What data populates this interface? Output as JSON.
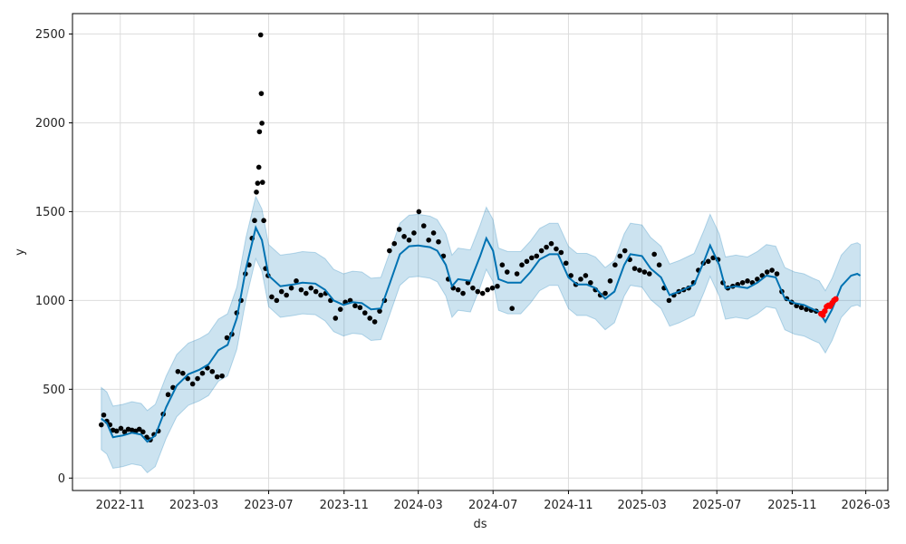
{
  "chart_data": {
    "type": "line",
    "title": "",
    "xlabel": "ds",
    "ylabel": "y",
    "x_axis": {
      "type": "date",
      "range": [
        "2022-08-15",
        "2026-04-06"
      ],
      "ticks": [
        {
          "date": "2022-11-01",
          "label": "2022-11"
        },
        {
          "date": "2023-03-01",
          "label": "2023-03"
        },
        {
          "date": "2023-07-01",
          "label": "2023-07"
        },
        {
          "date": "2023-11-01",
          "label": "2023-11"
        },
        {
          "date": "2024-03-01",
          "label": "2024-03"
        },
        {
          "date": "2024-07-01",
          "label": "2024-07"
        },
        {
          "date": "2024-11-01",
          "label": "2024-11"
        },
        {
          "date": "2025-03-01",
          "label": "2025-03"
        },
        {
          "date": "2025-07-01",
          "label": "2025-07"
        },
        {
          "date": "2025-11-01",
          "label": "2025-11"
        },
        {
          "date": "2026-03-01",
          "label": "2026-03"
        }
      ]
    },
    "y_axis": {
      "range": [
        -70,
        2615
      ],
      "ticks": [
        0,
        500,
        1000,
        1500,
        2000,
        2500
      ]
    },
    "grid": true,
    "legend": "none",
    "colors": {
      "forecast_line": "#0072b2",
      "uncertainty_band": "#0072b2",
      "observed_points": "#000000",
      "highlighted_points": "#ff0000",
      "grid": "#dddddd"
    },
    "band_width": 175,
    "series": [
      {
        "role": "forecast",
        "points": [
          [
            "2022-10-01",
            335
          ],
          [
            "2022-10-10",
            310
          ],
          [
            "2022-10-20",
            230
          ],
          [
            "2022-11-05",
            240
          ],
          [
            "2022-11-20",
            255
          ],
          [
            "2022-12-05",
            245
          ],
          [
            "2022-12-15",
            205
          ],
          [
            "2022-12-28",
            240
          ],
          [
            "2023-01-15",
            400
          ],
          [
            "2023-02-01",
            520
          ],
          [
            "2023-02-20",
            585
          ],
          [
            "2023-03-10",
            610
          ],
          [
            "2023-03-25",
            640
          ],
          [
            "2023-04-10",
            720
          ],
          [
            "2023-04-25",
            750
          ],
          [
            "2023-05-10",
            900
          ],
          [
            "2023-05-25",
            1180
          ],
          [
            "2023-06-10",
            1410
          ],
          [
            "2023-06-20",
            1340
          ],
          [
            "2023-07-01",
            1140
          ],
          [
            "2023-07-20",
            1080
          ],
          [
            "2023-08-10",
            1090
          ],
          [
            "2023-08-25",
            1100
          ],
          [
            "2023-09-15",
            1095
          ],
          [
            "2023-10-01",
            1060
          ],
          [
            "2023-10-15",
            1000
          ],
          [
            "2023-10-31",
            975
          ],
          [
            "2023-11-15",
            990
          ],
          [
            "2023-11-30",
            985
          ],
          [
            "2023-12-15",
            950
          ],
          [
            "2023-12-31",
            955
          ],
          [
            "2024-01-15",
            1100
          ],
          [
            "2024-01-31",
            1260
          ],
          [
            "2024-02-15",
            1305
          ],
          [
            "2024-03-01",
            1310
          ],
          [
            "2024-03-20",
            1300
          ],
          [
            "2024-04-01",
            1280
          ],
          [
            "2024-04-15",
            1200
          ],
          [
            "2024-04-25",
            1080
          ],
          [
            "2024-05-05",
            1120
          ],
          [
            "2024-05-25",
            1110
          ],
          [
            "2024-06-10",
            1250
          ],
          [
            "2024-06-20",
            1350
          ],
          [
            "2024-07-01",
            1280
          ],
          [
            "2024-07-10",
            1120
          ],
          [
            "2024-07-25",
            1100
          ],
          [
            "2024-08-15",
            1100
          ],
          [
            "2024-08-31",
            1160
          ],
          [
            "2024-09-15",
            1230
          ],
          [
            "2024-10-01",
            1260
          ],
          [
            "2024-10-15",
            1260
          ],
          [
            "2024-11-01",
            1130
          ],
          [
            "2024-11-15",
            1090
          ],
          [
            "2024-12-01",
            1090
          ],
          [
            "2024-12-15",
            1070
          ],
          [
            "2024-12-31",
            1010
          ],
          [
            "2025-01-15",
            1050
          ],
          [
            "2025-01-31",
            1200
          ],
          [
            "2025-02-10",
            1260
          ],
          [
            "2025-03-01",
            1250
          ],
          [
            "2025-03-15",
            1180
          ],
          [
            "2025-04-01",
            1130
          ],
          [
            "2025-04-15",
            1030
          ],
          [
            "2025-05-01",
            1050
          ],
          [
            "2025-05-25",
            1090
          ],
          [
            "2025-06-10",
            1220
          ],
          [
            "2025-06-20",
            1310
          ],
          [
            "2025-07-05",
            1200
          ],
          [
            "2025-07-15",
            1070
          ],
          [
            "2025-08-01",
            1080
          ],
          [
            "2025-08-20",
            1070
          ],
          [
            "2025-09-05",
            1100
          ],
          [
            "2025-09-20",
            1140
          ],
          [
            "2025-10-05",
            1130
          ],
          [
            "2025-10-20",
            1010
          ],
          [
            "2025-11-05",
            985
          ],
          [
            "2025-11-20",
            975
          ],
          [
            "2025-12-05",
            950
          ],
          [
            "2025-12-15",
            935
          ],
          [
            "2025-12-25",
            880
          ],
          [
            "2026-01-05",
            950
          ],
          [
            "2026-01-20",
            1080
          ],
          [
            "2026-02-05",
            1140
          ],
          [
            "2026-02-15",
            1150
          ],
          [
            "2026-02-20",
            1140
          ]
        ]
      },
      {
        "role": "observed",
        "points": [
          [
            "2022-10-01",
            300
          ],
          [
            "2022-10-05",
            355
          ],
          [
            "2022-10-10",
            320
          ],
          [
            "2022-10-15",
            300
          ],
          [
            "2022-10-20",
            270
          ],
          [
            "2022-10-26",
            265
          ],
          [
            "2022-11-02",
            280
          ],
          [
            "2022-11-08",
            260
          ],
          [
            "2022-11-14",
            275
          ],
          [
            "2022-11-20",
            270
          ],
          [
            "2022-11-26",
            265
          ],
          [
            "2022-12-02",
            275
          ],
          [
            "2022-12-08",
            260
          ],
          [
            "2022-12-14",
            230
          ],
          [
            "2022-12-20",
            215
          ],
          [
            "2022-12-26",
            245
          ],
          [
            "2023-01-02",
            265
          ],
          [
            "2023-01-10",
            360
          ],
          [
            "2023-01-18",
            470
          ],
          [
            "2023-01-26",
            510
          ],
          [
            "2023-02-03",
            600
          ],
          [
            "2023-02-11",
            590
          ],
          [
            "2023-02-19",
            560
          ],
          [
            "2023-02-27",
            530
          ],
          [
            "2023-03-07",
            560
          ],
          [
            "2023-03-15",
            590
          ],
          [
            "2023-03-23",
            620
          ],
          [
            "2023-03-31",
            600
          ],
          [
            "2023-04-08",
            570
          ],
          [
            "2023-04-16",
            575
          ],
          [
            "2023-04-24",
            790
          ],
          [
            "2023-05-02",
            810
          ],
          [
            "2023-05-10",
            930
          ],
          [
            "2023-05-17",
            1000
          ],
          [
            "2023-05-24",
            1150
          ],
          [
            "2023-05-30",
            1200
          ],
          [
            "2023-06-04",
            1350
          ],
          [
            "2023-06-08",
            1450
          ],
          [
            "2023-06-11",
            1610
          ],
          [
            "2023-06-13",
            1660
          ],
          [
            "2023-06-15",
            1750
          ],
          [
            "2023-06-16",
            1950
          ],
          [
            "2023-06-18",
            2495
          ],
          [
            "2023-06-19",
            2165
          ],
          [
            "2023-06-20",
            1998
          ],
          [
            "2023-06-21",
            1665
          ],
          [
            "2023-06-23",
            1450
          ],
          [
            "2023-06-26",
            1180
          ],
          [
            "2023-06-30",
            1140
          ],
          [
            "2023-07-06",
            1020
          ],
          [
            "2023-07-14",
            1000
          ],
          [
            "2023-07-22",
            1050
          ],
          [
            "2023-07-30",
            1030
          ],
          [
            "2023-08-07",
            1070
          ],
          [
            "2023-08-15",
            1110
          ],
          [
            "2023-08-23",
            1060
          ],
          [
            "2023-08-31",
            1040
          ],
          [
            "2023-09-08",
            1070
          ],
          [
            "2023-09-16",
            1050
          ],
          [
            "2023-09-24",
            1030
          ],
          [
            "2023-10-02",
            1040
          ],
          [
            "2023-10-10",
            1000
          ],
          [
            "2023-10-18",
            900
          ],
          [
            "2023-10-26",
            950
          ],
          [
            "2023-11-03",
            990
          ],
          [
            "2023-11-11",
            1000
          ],
          [
            "2023-11-19",
            970
          ],
          [
            "2023-11-27",
            960
          ],
          [
            "2023-12-05",
            930
          ],
          [
            "2023-12-13",
            900
          ],
          [
            "2023-12-21",
            880
          ],
          [
            "2023-12-29",
            940
          ],
          [
            "2024-01-06",
            1000
          ],
          [
            "2024-01-14",
            1280
          ],
          [
            "2024-01-22",
            1320
          ],
          [
            "2024-01-30",
            1400
          ],
          [
            "2024-02-07",
            1360
          ],
          [
            "2024-02-15",
            1340
          ],
          [
            "2024-02-23",
            1380
          ],
          [
            "2024-03-02",
            1500
          ],
          [
            "2024-03-10",
            1420
          ],
          [
            "2024-03-18",
            1340
          ],
          [
            "2024-03-26",
            1380
          ],
          [
            "2024-04-03",
            1330
          ],
          [
            "2024-04-11",
            1250
          ],
          [
            "2024-04-19",
            1120
          ],
          [
            "2024-04-27",
            1070
          ],
          [
            "2024-05-05",
            1060
          ],
          [
            "2024-05-13",
            1040
          ],
          [
            "2024-05-21",
            1100
          ],
          [
            "2024-05-29",
            1070
          ],
          [
            "2024-06-06",
            1050
          ],
          [
            "2024-06-14",
            1040
          ],
          [
            "2024-06-22",
            1060
          ],
          [
            "2024-06-30",
            1070
          ],
          [
            "2024-07-08",
            1080
          ],
          [
            "2024-07-16",
            1200
          ],
          [
            "2024-07-24",
            1160
          ],
          [
            "2024-08-01",
            955
          ],
          [
            "2024-08-09",
            1150
          ],
          [
            "2024-08-17",
            1200
          ],
          [
            "2024-08-25",
            1220
          ],
          [
            "2024-09-02",
            1240
          ],
          [
            "2024-09-10",
            1250
          ],
          [
            "2024-09-18",
            1280
          ],
          [
            "2024-09-26",
            1300
          ],
          [
            "2024-10-04",
            1320
          ],
          [
            "2024-10-12",
            1290
          ],
          [
            "2024-10-20",
            1270
          ],
          [
            "2024-10-28",
            1210
          ],
          [
            "2024-11-05",
            1140
          ],
          [
            "2024-11-13",
            1090
          ],
          [
            "2024-11-21",
            1120
          ],
          [
            "2024-11-29",
            1140
          ],
          [
            "2024-12-07",
            1100
          ],
          [
            "2024-12-15",
            1060
          ],
          [
            "2024-12-23",
            1030
          ],
          [
            "2024-12-31",
            1040
          ],
          [
            "2025-01-08",
            1110
          ],
          [
            "2025-01-16",
            1200
          ],
          [
            "2025-01-24",
            1250
          ],
          [
            "2025-02-01",
            1280
          ],
          [
            "2025-02-09",
            1230
          ],
          [
            "2025-02-17",
            1180
          ],
          [
            "2025-02-25",
            1170
          ],
          [
            "2025-03-05",
            1160
          ],
          [
            "2025-03-13",
            1150
          ],
          [
            "2025-03-21",
            1260
          ],
          [
            "2025-03-29",
            1200
          ],
          [
            "2025-04-06",
            1070
          ],
          [
            "2025-04-14",
            1000
          ],
          [
            "2025-04-22",
            1030
          ],
          [
            "2025-04-30",
            1050
          ],
          [
            "2025-05-08",
            1060
          ],
          [
            "2025-05-16",
            1070
          ],
          [
            "2025-05-24",
            1100
          ],
          [
            "2025-06-01",
            1170
          ],
          [
            "2025-06-09",
            1210
          ],
          [
            "2025-06-17",
            1220
          ],
          [
            "2025-06-25",
            1240
          ],
          [
            "2025-07-03",
            1230
          ],
          [
            "2025-07-11",
            1100
          ],
          [
            "2025-07-19",
            1070
          ],
          [
            "2025-07-27",
            1080
          ],
          [
            "2025-08-04",
            1090
          ],
          [
            "2025-08-12",
            1100
          ],
          [
            "2025-08-20",
            1110
          ],
          [
            "2025-08-28",
            1100
          ],
          [
            "2025-09-05",
            1120
          ],
          [
            "2025-09-13",
            1140
          ],
          [
            "2025-09-21",
            1160
          ],
          [
            "2025-09-29",
            1170
          ],
          [
            "2025-10-07",
            1150
          ],
          [
            "2025-10-15",
            1050
          ],
          [
            "2025-10-23",
            1010
          ],
          [
            "2025-10-31",
            990
          ],
          [
            "2025-11-08",
            970
          ],
          [
            "2025-11-16",
            960
          ],
          [
            "2025-11-24",
            950
          ],
          [
            "2025-12-02",
            945
          ],
          [
            "2025-12-10",
            940
          ]
        ]
      },
      {
        "role": "highlighted",
        "points": [
          [
            "2025-12-18",
            925
          ],
          [
            "2025-12-21",
            918
          ],
          [
            "2025-12-24",
            940
          ],
          [
            "2025-12-27",
            965
          ],
          [
            "2025-12-30",
            972
          ],
          [
            "2026-01-02",
            968
          ],
          [
            "2026-01-05",
            985
          ],
          [
            "2026-01-08",
            1000
          ],
          [
            "2026-01-11",
            1008
          ]
        ]
      }
    ]
  }
}
